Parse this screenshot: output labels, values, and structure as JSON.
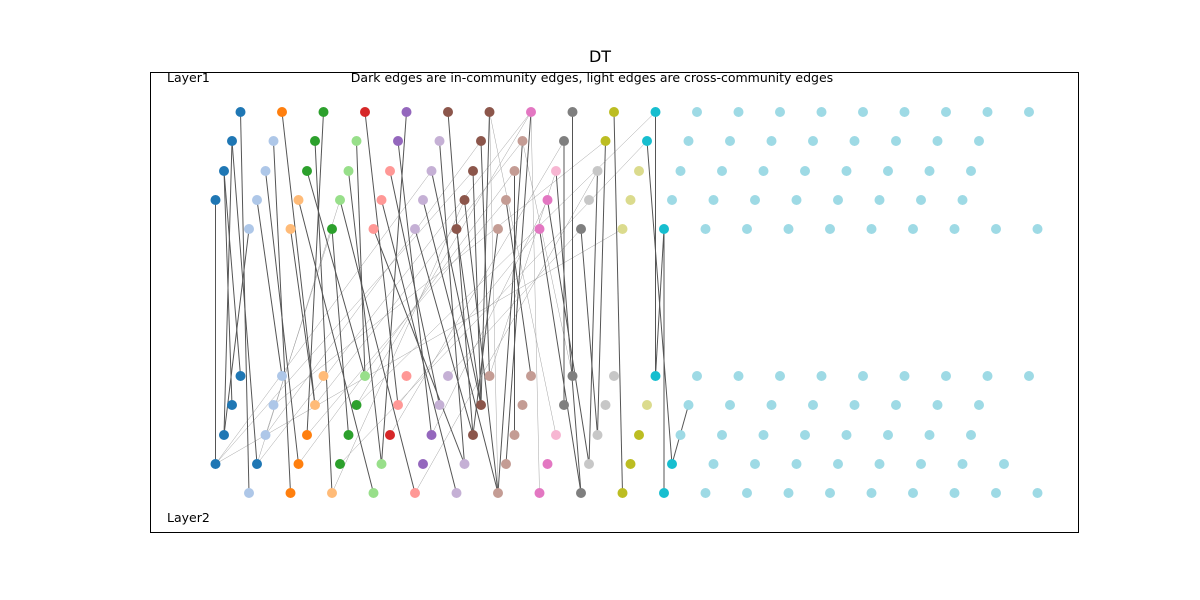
{
  "title": "DT",
  "subtitle": "Dark edges are in-community edges, light edges are cross-community edges",
  "layers": [
    {
      "label": "Layer1",
      "rows": [
        [
          "c0",
          "c2",
          "c4",
          "c6",
          "c8",
          "c10",
          "c10",
          "c12",
          "c14",
          "c16",
          "c18",
          "c19",
          "c19",
          "c19",
          "c19",
          "c19",
          "c19",
          "c19",
          "c19",
          "c19"
        ],
        [
          "c0",
          "c1",
          "c4",
          "c5",
          "c8",
          "c9",
          "c10",
          "c11",
          "c14",
          "c16",
          "c18",
          "c19",
          "c19",
          "c19",
          "c19",
          "c19",
          "c19",
          "c19",
          "c19"
        ],
        [
          "c0",
          "c1",
          "c4",
          "c5",
          "c7",
          "c9",
          "c10",
          "c11",
          "c13",
          "c15",
          "c17",
          "c19",
          "c19",
          "c19",
          "c19",
          "c19",
          "c19",
          "c19",
          "c19"
        ],
        [
          "c0",
          "c1",
          "c3",
          "c5",
          "c7",
          "c9",
          "c10",
          "c11",
          "c12",
          "c15",
          "c17",
          "c19",
          "c19",
          "c19",
          "c19",
          "c19",
          "c19",
          "c19",
          "c19"
        ],
        [
          "c1",
          "c3",
          "c4",
          "c7",
          "c9",
          "c10",
          "c11",
          "c12",
          "c14",
          "c17",
          "c18",
          "c19",
          "c19",
          "c19",
          "c19",
          "c19",
          "c19",
          "c19",
          "c19",
          "c19"
        ]
      ]
    },
    {
      "label": "Layer2",
      "rows": [
        [
          "c0",
          "c1",
          "c3",
          "c5",
          "c7",
          "c9",
          "c11",
          "c11",
          "c14",
          "c15",
          "c18",
          "c19",
          "c19",
          "c19",
          "c19",
          "c19",
          "c19",
          "c19",
          "c19",
          "c19"
        ],
        [
          "c0",
          "c1",
          "c3",
          "c4",
          "c7",
          "c9",
          "c10",
          "c11",
          "c14",
          "c15",
          "c17",
          "c19",
          "c19",
          "c19",
          "c19",
          "c19",
          "c19",
          "c19",
          "c19"
        ],
        [
          "c0",
          "c1",
          "c2",
          "c4",
          "c6",
          "c8",
          "c10",
          "c11",
          "c13",
          "c15",
          "c16",
          "c19",
          "c19",
          "c19",
          "c19",
          "c19",
          "c19",
          "c19",
          "c19"
        ],
        [
          "c0",
          "c0",
          "c2",
          "c4",
          "c5",
          "c8",
          "c9",
          "c11",
          "c12",
          "c15",
          "c16",
          "c18",
          "c19",
          "c19",
          "c19",
          "c19",
          "c19",
          "c19",
          "c19",
          "c19"
        ],
        [
          "c1",
          "c2",
          "c3",
          "c5",
          "c7",
          "c9",
          "c11",
          "c12",
          "c14",
          "c16",
          "c18",
          "c19",
          "c19",
          "c19",
          "c19",
          "c19",
          "c19",
          "c19",
          "c19",
          "c19"
        ]
      ]
    }
  ],
  "palette": {
    "c0": "#1f77b4",
    "c1": "#aec7e8",
    "c2": "#ff7f0e",
    "c3": "#ffbb78",
    "c4": "#2ca02c",
    "c5": "#98df8a",
    "c6": "#d62728",
    "c7": "#ff9896",
    "c8": "#9467bd",
    "c9": "#c5b0d5",
    "c10": "#8c564b",
    "c11": "#c49c94",
    "c12": "#e377c2",
    "c13": "#f7b6d2",
    "c14": "#7f7f7f",
    "c15": "#c7c7c7",
    "c16": "#bcbd22",
    "c17": "#dbdb8d",
    "c18": "#17becf",
    "c19": "#9edae5"
  },
  "in_community_edges": [
    [
      [
        0,
        3
      ],
      [
        1,
        3
      ]
    ],
    [
      [
        0,
        2
      ],
      [
        1,
        2
      ]
    ],
    [
      [
        0,
        1
      ],
      [
        1,
        2
      ]
    ],
    [
      [
        0,
        1
      ],
      [
        1,
        3
      ]
    ],
    [
      [
        0,
        0
      ],
      [
        1,
        0
      ]
    ],
    [
      [
        0,
        2
      ],
      [
        1,
        3
      ]
    ],
    [
      [
        0,
        4
      ],
      [
        1,
        4
      ]
    ],
    [
      [
        0,
        0
      ],
      [
        1,
        4
      ]
    ],
    [
      [
        0,
        4
      ],
      [
        1,
        0
      ]
    ],
    [
      [
        0,
        3
      ],
      [
        1,
        4
      ]
    ],
    [
      [
        0,
        0
      ],
      [
        0,
        2
      ]
    ],
    [
      [
        0,
        0
      ],
      [
        0,
        3
      ]
    ],
    [
      [
        0,
        2
      ],
      [
        1,
        1
      ]
    ],
    [
      [
        0,
        4
      ],
      [
        1,
        2
      ]
    ],
    [
      [
        0,
        3
      ],
      [
        1,
        1
      ]
    ],
    [
      [
        0,
        0
      ],
      [
        0,
        3
      ]
    ],
    [
      [
        0,
        2
      ],
      [
        0,
        2
      ]
    ],
    [
      [
        0,
        4
      ],
      [
        0,
        3
      ]
    ],
    [
      [
        0,
        3
      ],
      [
        1,
        2
      ]
    ],
    [
      [
        0,
        4
      ],
      [
        1,
        3
      ]
    ],
    [
      [
        0,
        0
      ],
      [
        1,
        3
      ]
    ],
    [
      [
        0,
        2
      ],
      [
        0,
        4
      ]
    ],
    [
      [
        0,
        3
      ],
      [
        0,
        4
      ]
    ],
    [
      [
        0,
        0
      ],
      [
        0,
        5
      ]
    ],
    [
      [
        0,
        3
      ],
      [
        1,
        4
      ]
    ],
    [
      [
        0,
        4
      ],
      [
        1,
        5
      ]
    ],
    [
      [
        0,
        1
      ],
      [
        0,
        5
      ]
    ],
    [
      [
        0,
        2
      ],
      [
        1,
        5
      ]
    ],
    [
      [
        0,
        0
      ],
      [
        1,
        4
      ]
    ],
    [
      [
        0,
        1
      ],
      [
        1,
        4
      ]
    ],
    [
      [
        0,
        4
      ],
      [
        1,
        5
      ]
    ],
    [
      [
        0,
        3
      ],
      [
        1,
        5
      ]
    ],
    [
      [
        0,
        0
      ],
      [
        0,
        5
      ]
    ],
    [
      [
        0,
        2
      ],
      [
        0,
        8
      ]
    ],
    [
      [
        0,
        4
      ],
      [
        1,
        6
      ]
    ],
    [
      [
        0,
        3
      ],
      [
        1,
        6
      ]
    ],
    [
      [
        0,
        0
      ],
      [
        1,
        6
      ]
    ],
    [
      [
        0,
        1
      ],
      [
        1,
        6
      ]
    ],
    [
      [
        0,
        4
      ],
      [
        0,
        9
      ]
    ],
    [
      [
        0,
        1
      ],
      [
        1,
        7
      ]
    ],
    [
      [
        0,
        0
      ],
      [
        1,
        7
      ]
    ],
    [
      [
        0,
        2
      ],
      [
        1,
        7
      ]
    ],
    [
      [
        0,
        3
      ],
      [
        1,
        7
      ]
    ],
    [
      [
        0,
        4
      ],
      [
        1,
        7
      ]
    ],
    [
      [
        0,
        1
      ],
      [
        0,
        9
      ]
    ],
    [
      [
        0,
        2
      ],
      [
        1,
        8
      ]
    ],
    [
      [
        0,
        0
      ],
      [
        1,
        8
      ]
    ],
    [
      [
        0,
        4
      ],
      [
        1,
        8
      ]
    ],
    [
      [
        0,
        1
      ],
      [
        1,
        8
      ]
    ],
    [
      [
        0,
        4
      ],
      [
        1,
        9
      ]
    ],
    [
      [
        0,
        0
      ],
      [
        1,
        9
      ]
    ],
    [
      [
        0,
        1
      ],
      [
        1,
        9
      ]
    ],
    [
      [
        0,
        0
      ],
      [
        1,
        10
      ]
    ],
    [
      [
        0,
        1
      ],
      [
        1,
        10
      ]
    ],
    [
      [
        0,
        4
      ],
      [
        1,
        10
      ]
    ]
  ],
  "cross_community_edges": [
    [
      [
        0,
        6
      ],
      [
        1,
        4
      ]
    ],
    [
      [
        0,
        7
      ],
      [
        1,
        3
      ]
    ],
    [
      [
        0,
        5
      ],
      [
        1,
        3
      ]
    ],
    [
      [
        0,
        6
      ],
      [
        1,
        2
      ]
    ],
    [
      [
        0,
        8
      ],
      [
        1,
        1
      ]
    ],
    [
      [
        0,
        9
      ],
      [
        1,
        0
      ]
    ],
    [
      [
        0,
        10
      ],
      [
        1,
        0
      ]
    ],
    [
      [
        0,
        9
      ],
      [
        1,
        2
      ]
    ],
    [
      [
        0,
        5
      ],
      [
        1,
        5
      ]
    ],
    [
      [
        0,
        6
      ],
      [
        1,
        6
      ]
    ],
    [
      [
        0,
        8
      ],
      [
        1,
        4
      ]
    ],
    [
      [
        0,
        7
      ],
      [
        1,
        5
      ]
    ],
    [
      [
        0,
        10
      ],
      [
        1,
        1
      ]
    ],
    [
      [
        0,
        9
      ],
      [
        1,
        3
      ]
    ],
    [
      [
        0,
        3
      ],
      [
        1,
        9
      ]
    ],
    [
      [
        0,
        4
      ],
      [
        1,
        10
      ]
    ],
    [
      [
        0,
        6
      ],
      [
        1,
        8
      ]
    ],
    [
      [
        0,
        8
      ],
      [
        1,
        7
      ]
    ],
    [
      [
        0,
        5
      ],
      [
        1,
        9
      ]
    ],
    [
      [
        0,
        7
      ],
      [
        1,
        6
      ]
    ],
    [
      [
        0,
        1
      ],
      [
        1,
        11
      ]
    ],
    [
      [
        0,
        10
      ],
      [
        1,
        3
      ]
    ],
    [
      [
        0,
        8
      ],
      [
        1,
        3
      ]
    ],
    [
      [
        0,
        6
      ],
      [
        1,
        5
      ]
    ]
  ]
}
